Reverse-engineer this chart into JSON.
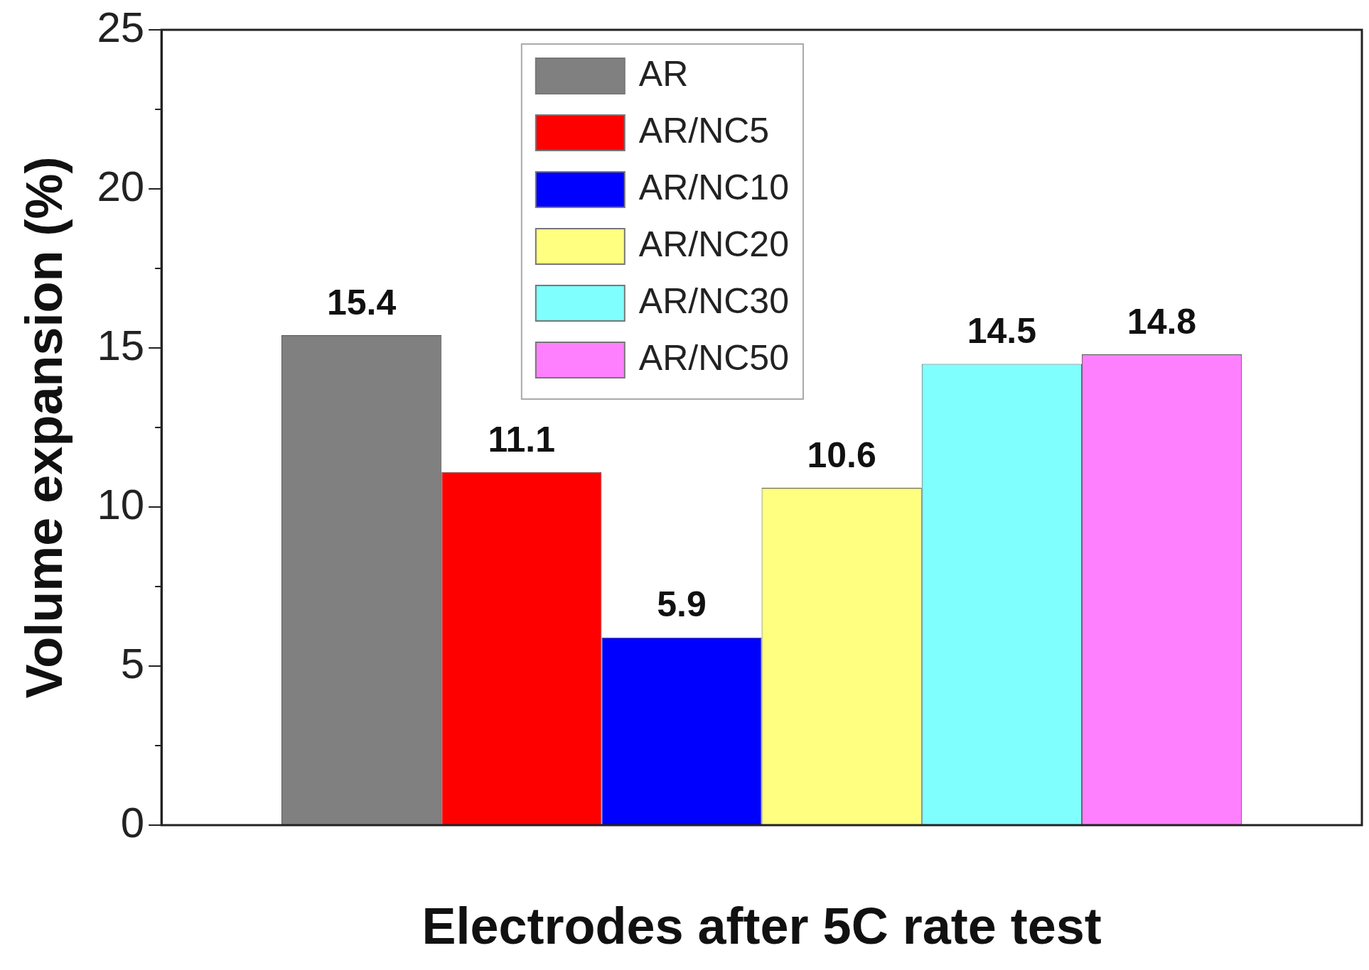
{
  "chart_data": {
    "type": "bar",
    "xlabel": "Electrodes after 5C rate test",
    "ylabel": "Volume expansion (%)",
    "categories": [
      null
    ],
    "series": [
      {
        "name": "AR",
        "color": "#808080",
        "values": [
          15.4
        ]
      },
      {
        "name": "AR/NC5",
        "color": "#ff0000",
        "values": [
          11.1
        ]
      },
      {
        "name": "AR/NC10",
        "color": "#0000ff",
        "values": [
          5.9
        ]
      },
      {
        "name": "AR/NC20",
        "color": "#ffff80",
        "values": [
          10.6
        ]
      },
      {
        "name": "AR/NC30",
        "color": "#80ffff",
        "values": [
          14.5
        ]
      },
      {
        "name": "AR/NC50",
        "color": "#ff80ff",
        "values": [
          14.8
        ]
      }
    ],
    "ylim": [
      0,
      25
    ],
    "yticks": [
      0,
      5,
      10,
      15,
      20,
      25
    ],
    "grid": false,
    "legend": "top",
    "data_labels": true
  }
}
